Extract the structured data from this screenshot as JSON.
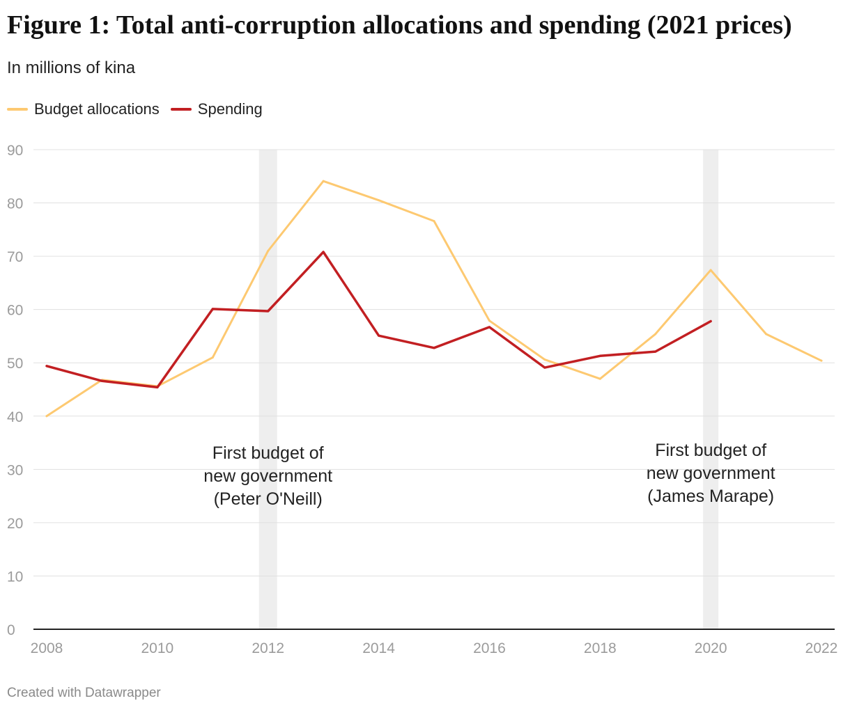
{
  "title": "Figure 1: Total anti-corruption allocations and spending (2021 prices)",
  "subtitle": "In millions of kina",
  "footer": "Created with Datawrapper",
  "colors": {
    "budget": "#fdc971",
    "spending": "#c21f22",
    "band": "#eeeeee",
    "grid": "#e0e0e0",
    "tick": "#9b9b9b"
  },
  "chart_data": {
    "type": "line",
    "title": "Figure 1: Total anti-corruption allocations and spending (2021 prices)",
    "subtitle": "In millions of kina",
    "xlabel": "",
    "ylabel": "",
    "xlim": [
      2008,
      2022
    ],
    "ylim": [
      0,
      90
    ],
    "x_ticks": [
      2008,
      2010,
      2012,
      2014,
      2016,
      2018,
      2020,
      2022
    ],
    "y_ticks": [
      0,
      10,
      20,
      30,
      40,
      50,
      60,
      70,
      80,
      90
    ],
    "grid": true,
    "legend_position": "top-left",
    "series": [
      {
        "name": "Budget allocations",
        "color": "#fdc971",
        "x": [
          2008,
          2009,
          2010,
          2011,
          2012,
          2013,
          2014,
          2015,
          2016,
          2017,
          2018,
          2019,
          2020,
          2021,
          2022
        ],
        "values": [
          40.0,
          46.8,
          45.6,
          51.0,
          71.0,
          84.1,
          80.5,
          76.6,
          57.9,
          50.6,
          47.0,
          55.4,
          67.4,
          55.4,
          50.4
        ]
      },
      {
        "name": "Spending",
        "color": "#c21f22",
        "x": [
          2008,
          2009,
          2010,
          2011,
          2012,
          2013,
          2014,
          2015,
          2016,
          2017,
          2018,
          2019,
          2020
        ],
        "values": [
          49.4,
          46.6,
          45.4,
          60.1,
          59.7,
          70.8,
          55.1,
          52.8,
          56.7,
          49.1,
          51.3,
          52.1,
          57.8
        ]
      }
    ],
    "annotations": [
      {
        "year": 2012,
        "lines": [
          "First budget of",
          "new government",
          "(Peter O'Neill)"
        ]
      },
      {
        "year": 2020,
        "lines": [
          "First budget of",
          "new government",
          "(James Marape)"
        ]
      }
    ]
  }
}
